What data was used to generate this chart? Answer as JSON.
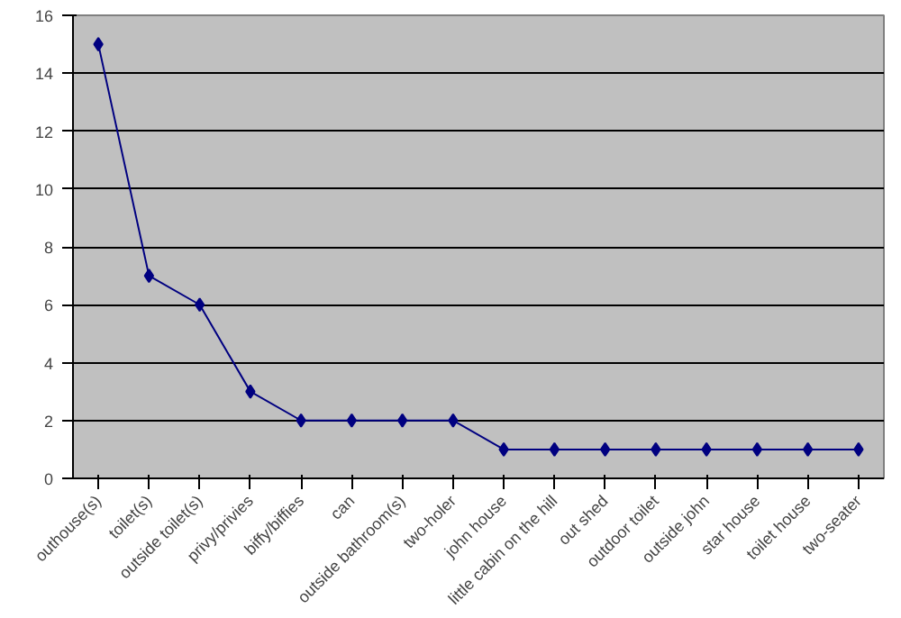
{
  "chart_data": {
    "type": "line",
    "categories": [
      "outhouse(s)",
      "toilet(s)",
      "outside toilet(s)",
      "privy/privies",
      "biffy/biffies",
      "can",
      "outside bathroom(s)",
      "two-holer",
      "john house",
      "little cabin on the hill",
      "out shed",
      "outdoor toilet",
      "outside john",
      "star house",
      "toilet house",
      "two-seater"
    ],
    "series": [
      {
        "color": "#000080",
        "values": [
          15,
          7,
          6,
          3,
          2,
          2,
          2,
          2,
          1,
          1,
          1,
          1,
          1,
          1,
          1,
          1
        ]
      }
    ],
    "ylim": [
      0,
      16
    ],
    "yticks": [
      0,
      2,
      4,
      6,
      8,
      10,
      12,
      14,
      16
    ],
    "grid": "y",
    "marker": "diamond",
    "line_style": "solid"
  }
}
